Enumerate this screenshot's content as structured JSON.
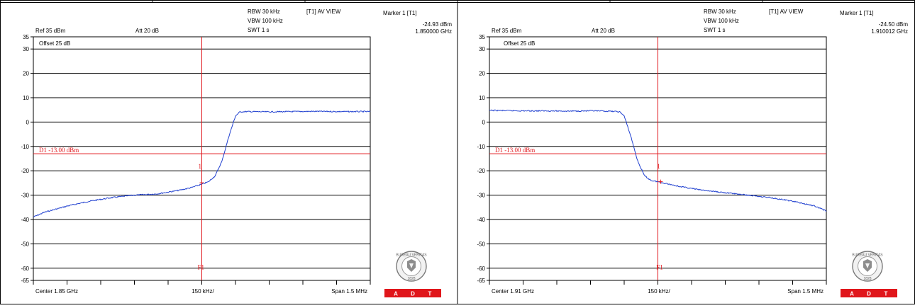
{
  "chart_data": [
    {
      "type": "line",
      "header": {
        "rbw": "RBW 30 kHz",
        "vbw": "VBW 100 kHz",
        "swt": "SWT 1 s",
        "view": "[T1] AV VIEW",
        "ref": "Ref 35 dBm",
        "att": "Att 20 dB",
        "offset": "Offset 25 dB"
      },
      "marker": {
        "title": "Marker 1 [T1]",
        "level": "-24.93 dBm",
        "freq": "1.850000 GHz",
        "label": "1",
        "ref_label": "F1",
        "x_mhz": 0.0,
        "y_dbm": -24.93
      },
      "display_line": {
        "label": "D1 -13.00 dBm",
        "value": -13
      },
      "footer": {
        "center": "Center 1.85 GHz",
        "div": "150 kHz/",
        "span": "Span 1.5 MHz"
      },
      "y_ticks": [
        "35",
        "30",
        "20",
        "10",
        "0",
        "-10",
        "-20",
        "-30",
        "-40",
        "-50",
        "-60",
        "-65"
      ],
      "ylim": [
        -65,
        35
      ],
      "xlim": [
        -0.75,
        0.75
      ],
      "line_color": "#1f3fcf",
      "series": [
        {
          "x": [
            -0.75,
            -0.7,
            -0.6,
            -0.5,
            -0.4,
            -0.3,
            -0.2,
            -0.1,
            -0.05,
            0.0,
            0.03,
            0.06,
            0.09,
            0.12,
            0.15,
            0.17,
            0.2,
            0.3,
            0.4,
            0.5,
            0.6,
            0.75
          ],
          "y": [
            -39,
            -37,
            -34.5,
            -32.5,
            -31,
            -30,
            -29.5,
            -28,
            -27,
            -25.5,
            -24.5,
            -22,
            -16,
            -6,
            2.5,
            4.2,
            4.3,
            4.2,
            4.3,
            4.4,
            4.3,
            4.3
          ]
        }
      ]
    },
    {
      "type": "line",
      "header": {
        "rbw": "RBW 30 kHz",
        "vbw": "VBW 100 kHz",
        "swt": "SWT 1 s",
        "view": "[T1] AV VIEW",
        "ref": "Ref 35 dBm",
        "att": "Att 20 dB",
        "offset": "Offset 25 dB"
      },
      "marker": {
        "title": "Marker 1 [T1]",
        "level": "-24.50 dBm",
        "freq": "1.910012 GHz",
        "label": "1",
        "ref_label": "F1",
        "x_mhz": 0.012,
        "y_dbm": -24.5
      },
      "display_line": {
        "label": "D1 -13.00 dBm",
        "value": -13
      },
      "footer": {
        "center": "Center 1.91 GHz",
        "div": "150 kHz/",
        "span": "Span 1.5 MHz"
      },
      "y_ticks": [
        "35",
        "30",
        "20",
        "10",
        "0",
        "-10",
        "-20",
        "-30",
        "-40",
        "-50",
        "-60",
        "-65"
      ],
      "ylim": [
        -65,
        35
      ],
      "xlim": [
        -0.75,
        0.75
      ],
      "line_color": "#1f3fcf",
      "series": [
        {
          "x": [
            -0.75,
            -0.6,
            -0.5,
            -0.4,
            -0.3,
            -0.2,
            -0.17,
            -0.15,
            -0.12,
            -0.09,
            -0.06,
            -0.03,
            0.0,
            0.05,
            0.1,
            0.2,
            0.3,
            0.4,
            0.5,
            0.6,
            0.7,
            0.75
          ],
          "y": [
            4.8,
            4.6,
            4.6,
            4.5,
            4.6,
            4.4,
            4.2,
            2.5,
            -6,
            -16,
            -22,
            -24,
            -24.5,
            -25.5,
            -26.5,
            -28,
            -29,
            -30,
            -31,
            -32.5,
            -34.5,
            -36.5
          ]
        }
      ]
    }
  ],
  "logo": {
    "top_text": "BUREAU VERITAS",
    "year": "1828",
    "band": [
      "A",
      "D",
      "T"
    ],
    "band_color": "#e0161b"
  }
}
